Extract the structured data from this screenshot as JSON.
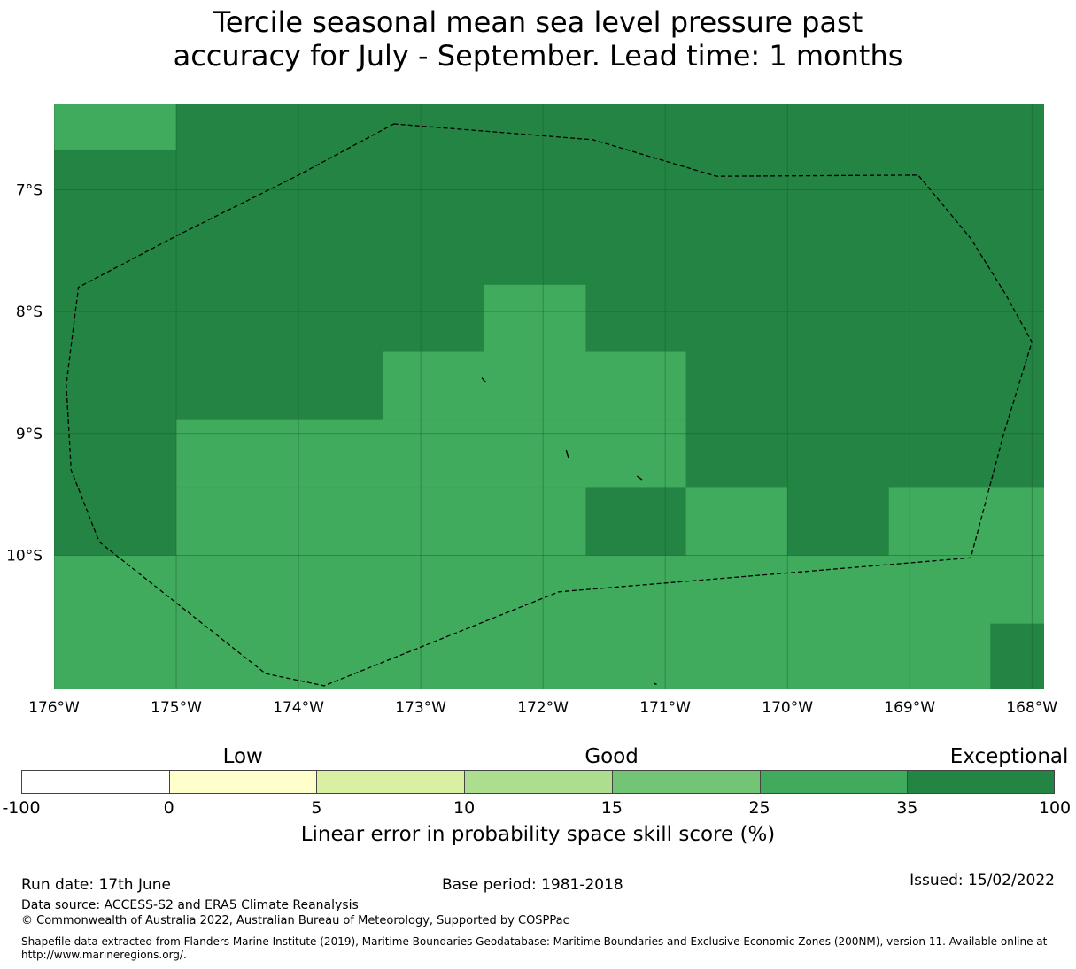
{
  "title": {
    "line1": "Tercile seasonal mean sea level pressure past",
    "line2": "accuracy for July - September. Lead time: 1 months"
  },
  "map": {
    "lon_range": [
      -176,
      -167.9
    ],
    "lat_range": [
      -11.1,
      -6.3
    ],
    "lat_ticks": [
      {
        "value": -7,
        "label": "7°S"
      },
      {
        "value": -8,
        "label": "8°S"
      },
      {
        "value": -9,
        "label": "9°S"
      },
      {
        "value": -10,
        "label": "10°S"
      }
    ],
    "lon_ticks": [
      {
        "value": -176,
        "label": "176°W"
      },
      {
        "value": -175,
        "label": "175°W"
      },
      {
        "value": -174,
        "label": "174°W"
      },
      {
        "value": -173,
        "label": "173°W"
      },
      {
        "value": -172,
        "label": "172°W"
      },
      {
        "value": -171,
        "label": "171°W"
      },
      {
        "value": -170,
        "label": "170°W"
      },
      {
        "value": -169,
        "label": "169°W"
      },
      {
        "value": -168,
        "label": "168°W"
      }
    ],
    "background_category": "35-100",
    "cells": [
      {
        "lon0": -176,
        "lon1": -175,
        "lat0": -6.3,
        "lat1": -6.67,
        "category": "25-35"
      },
      {
        "lon0": -172.48,
        "lon1": -171.65,
        "lat0": -7.78,
        "lat1": -8.33,
        "category": "25-35"
      },
      {
        "lon0": -173.31,
        "lon1": -170.83,
        "lat0": -8.33,
        "lat1": -8.89,
        "category": "25-35"
      },
      {
        "lon0": -175,
        "lon1": -170.83,
        "lat0": -8.89,
        "lat1": -9.44,
        "category": "25-35"
      },
      {
        "lon0": -175,
        "lon1": -171.65,
        "lat0": -9.44,
        "lat1": -10.0,
        "category": "25-35"
      },
      {
        "lon0": -170.83,
        "lon1": -170.0,
        "lat0": -9.44,
        "lat1": -10.0,
        "category": "25-35"
      },
      {
        "lon0": -169.17,
        "lon1": -167.9,
        "lat0": -9.44,
        "lat1": -10.0,
        "category": "25-35"
      },
      {
        "lon0": -176,
        "lon1": -167.9,
        "lat0": -10.0,
        "lat1": -11.1,
        "category": "25-35"
      },
      {
        "lon0": -168.34,
        "lon1": -167.9,
        "lat0": -10.56,
        "lat1": -11.1,
        "category": "35-100"
      }
    ],
    "eez_boundary": [
      [
        -173.22,
        -6.46
      ],
      [
        -171.59,
        -6.59
      ],
      [
        -170.58,
        -6.89
      ],
      [
        -168.93,
        -6.88
      ],
      [
        -168.5,
        -7.4
      ],
      [
        -168.22,
        -7.85
      ],
      [
        -168.0,
        -8.25
      ],
      [
        -168.23,
        -9.0
      ],
      [
        -168.5,
        -10.02
      ],
      [
        -171.87,
        -10.3
      ],
      [
        -173.79,
        -11.07
      ],
      [
        -174.27,
        -10.97
      ],
      [
        -175.63,
        -9.89
      ],
      [
        -175.86,
        -9.3
      ],
      [
        -175.9,
        -8.6
      ],
      [
        -175.8,
        -7.8
      ],
      [
        -175.0,
        -7.38
      ],
      [
        -174.0,
        -6.88
      ],
      [
        -173.22,
        -6.46
      ]
    ],
    "islands": [
      [
        [
          -172.5,
          -8.54
        ],
        [
          -172.47,
          -8.58
        ]
      ],
      [
        [
          -171.81,
          -9.14
        ],
        [
          -171.79,
          -9.2
        ]
      ],
      [
        [
          -171.23,
          -9.35
        ],
        [
          -171.19,
          -9.38
        ]
      ],
      [
        [
          -171.09,
          -11.05
        ],
        [
          -171.07,
          -11.06
        ]
      ]
    ]
  },
  "colorbar": {
    "categories": [
      {
        "label": "Low",
        "center_value": 2.5
      },
      {
        "label": "Good",
        "center_value": 15
      },
      {
        "label": "Exceptional",
        "center_value": 80
      }
    ],
    "bins": [
      {
        "from": -100,
        "to": 0,
        "color": "#ffffff"
      },
      {
        "from": 0,
        "to": 5,
        "color": "#ffffcc"
      },
      {
        "from": 5,
        "to": 10,
        "color": "#d9f0a3"
      },
      {
        "from": 10,
        "to": 15,
        "color": "#addd8e"
      },
      {
        "from": 15,
        "to": 25,
        "color": "#74c476"
      },
      {
        "from": 25,
        "to": 35,
        "color": "#41ab5d"
      },
      {
        "from": 35,
        "to": 100,
        "color": "#238443"
      }
    ],
    "ticks": [
      "-100",
      "0",
      "5",
      "10",
      "15",
      "25",
      "35",
      "100"
    ],
    "label": "Linear error in probability space skill score (%)"
  },
  "colors": {
    "25-35": "#41ab5d",
    "35-100": "#238443",
    "grid": "#1b5e2f",
    "boundary": "#000000"
  },
  "footer": {
    "run_date": "Run date: 17th June",
    "base_period": "Base period: 1981-2018",
    "issued": "Issued: 15/02/2022",
    "data_source": "Data source: ACCESS-S2 and ERA5 Climate Reanalysis",
    "copyright": "© Commonwealth of Australia 2022, Australian Bureau of Meteorology, Supported by COSPPac",
    "shapefile_line1": "Shapefile data extracted from Flanders Marine Institute (2019), Maritime Boundaries Geodatabase: Maritime Boundaries and Exclusive Economic Zones (200NM), version 11. Available online at",
    "shapefile_line2": "http://www.marineregions.org/."
  }
}
